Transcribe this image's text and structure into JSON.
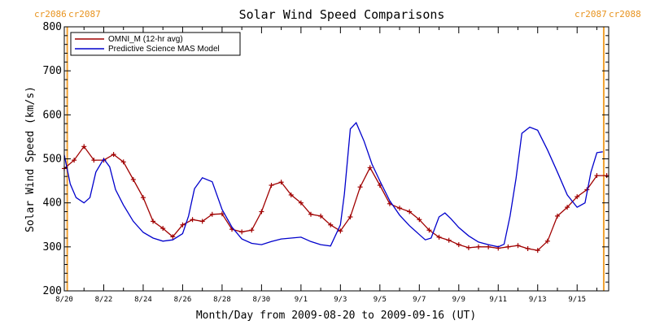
{
  "chart_data": {
    "type": "line",
    "title": "Solar Wind Speed Comparisons",
    "xlabel": "Month/Day from 2009-08-20 to 2009-09-16 (UT)",
    "ylabel": "Solar Wind Speed (km/s)",
    "xlim": [
      0,
      27.6
    ],
    "ylim": [
      200,
      800
    ],
    "yticks": [
      200,
      300,
      400,
      500,
      600,
      700,
      800
    ],
    "xtick_labels": [
      "8/20",
      "8/22",
      "8/24",
      "8/26",
      "8/28",
      "8/30",
      "9/1",
      "9/3",
      "9/5",
      "9/7",
      "9/9",
      "9/11",
      "9/13",
      "9/15"
    ],
    "grid": false,
    "legend_position": "top-left",
    "carrington_markers": [
      {
        "label_left": "cr2086",
        "label_right": "cr2087",
        "x": 0.15
      },
      {
        "label_left": "cr2087",
        "label_right": "cr2088",
        "x": 27.35
      }
    ],
    "series": [
      {
        "name": "OMNI_M (12-hr avg)",
        "color": "#a00000",
        "markers": true,
        "x": [
          0,
          0.5,
          1,
          1.5,
          2,
          2.5,
          3,
          3.5,
          4,
          4.5,
          5,
          5.5,
          6,
          6.5,
          7,
          7.5,
          8,
          8.5,
          9,
          9.5,
          10,
          10.5,
          11,
          11.5,
          12,
          12.5,
          13,
          13.5,
          14,
          14.5,
          15,
          15.5,
          16,
          16.5,
          17,
          17.5,
          18,
          18.5,
          19,
          19.5,
          20,
          20.5,
          21,
          21.5,
          22,
          22.5,
          23,
          23.5,
          24,
          24.5,
          25,
          25.5,
          26,
          26.5,
          27,
          27.5
        ],
        "values": [
          478,
          497,
          528,
          497,
          497,
          510,
          493,
          453,
          412,
          358,
          342,
          323,
          350,
          362,
          358,
          374,
          375,
          340,
          334,
          338,
          380,
          440,
          447,
          418,
          400,
          374,
          370,
          350,
          336,
          368,
          436,
          480,
          440,
          398,
          388,
          380,
          362,
          338,
          322,
          315,
          305,
          298,
          300,
          300,
          297,
          300,
          303,
          296,
          292,
          313,
          370,
          390,
          414,
          430,
          462,
          462
        ]
      },
      {
        "name": "Predictive Science MAS Model",
        "color": "#0000cc",
        "markers": false,
        "x": [
          0,
          0.3,
          0.6,
          1,
          1.3,
          1.6,
          2,
          2.3,
          2.6,
          3,
          3.5,
          4,
          4.5,
          5,
          5.5,
          6,
          6.3,
          6.6,
          7,
          7.5,
          8,
          8.5,
          9,
          9.5,
          10,
          10.5,
          11,
          11.5,
          12,
          12.5,
          13,
          13.5,
          14,
          14.2,
          14.5,
          14.8,
          15.2,
          15.6,
          16,
          16.5,
          17,
          17.5,
          18,
          18.3,
          18.6,
          19,
          19.3,
          19.6,
          20,
          20.5,
          21,
          21.5,
          22,
          22.3,
          22.6,
          22.9,
          23.2,
          23.6,
          24,
          24.5,
          25,
          25.5,
          26,
          26.4,
          26.7,
          27,
          27.3
        ],
        "values": [
          509,
          443,
          412,
          400,
          412,
          470,
          500,
          482,
          430,
          395,
          358,
          333,
          320,
          313,
          316,
          330,
          370,
          432,
          457,
          448,
          385,
          345,
          318,
          308,
          305,
          312,
          318,
          320,
          322,
          312,
          305,
          302,
          350,
          420,
          568,
          582,
          540,
          488,
          450,
          405,
          372,
          348,
          328,
          316,
          320,
          368,
          377,
          364,
          344,
          325,
          311,
          305,
          300,
          306,
          370,
          455,
          558,
          572,
          565,
          520,
          470,
          418,
          390,
          400,
          470,
          514,
          516
        ]
      }
    ]
  }
}
